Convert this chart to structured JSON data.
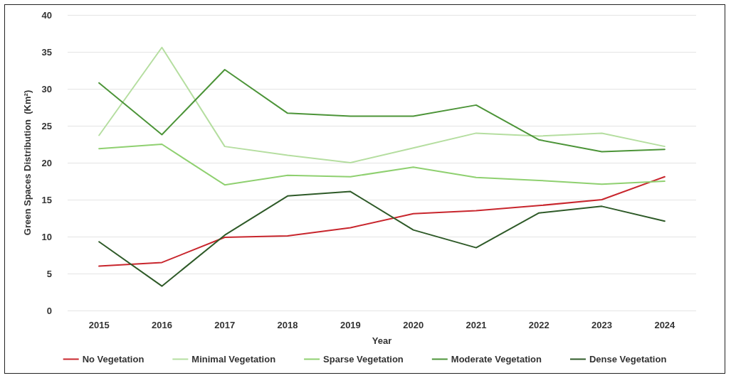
{
  "chart_data": {
    "type": "line",
    "xlabel": "Year",
    "ylabel": "Green Spaces Distribution  (Km²)",
    "categories": [
      "2015",
      "2016",
      "2017",
      "2018",
      "2019",
      "2020",
      "2021",
      "2022",
      "2023",
      "2024"
    ],
    "series": [
      {
        "name": "No Vegetation",
        "color": "#c8262d",
        "values": [
          6.0,
          6.5,
          9.9,
          10.1,
          11.2,
          13.1,
          13.5,
          14.2,
          15.0,
          18.1
        ]
      },
      {
        "name": "Minimal Vegetation",
        "color": "#b5dea0",
        "values": [
          23.7,
          35.6,
          22.2,
          21.0,
          20.0,
          22.0,
          24.0,
          23.6,
          24.0,
          22.2
        ]
      },
      {
        "name": "Sparse Vegetation",
        "color": "#8fd070",
        "values": [
          21.9,
          22.5,
          17.0,
          18.3,
          18.1,
          19.4,
          18.0,
          17.6,
          17.1,
          17.5
        ]
      },
      {
        "name": "Moderate Vegetation",
        "color": "#4c9438",
        "values": [
          30.8,
          23.8,
          32.6,
          26.7,
          26.3,
          26.3,
          27.8,
          23.1,
          21.5,
          21.8
        ]
      },
      {
        "name": "Dense Vegetation",
        "color": "#2e5a28",
        "values": [
          9.3,
          3.3,
          10.2,
          15.5,
          16.1,
          10.9,
          8.5,
          13.2,
          14.1,
          12.1
        ]
      }
    ],
    "ylim": [
      0,
      40
    ],
    "yticks": [
      0,
      5,
      10,
      15,
      20,
      25,
      30,
      35,
      40
    ],
    "grid": "y",
    "legend": "bottom",
    "marker": "none",
    "line_style": "solid"
  }
}
